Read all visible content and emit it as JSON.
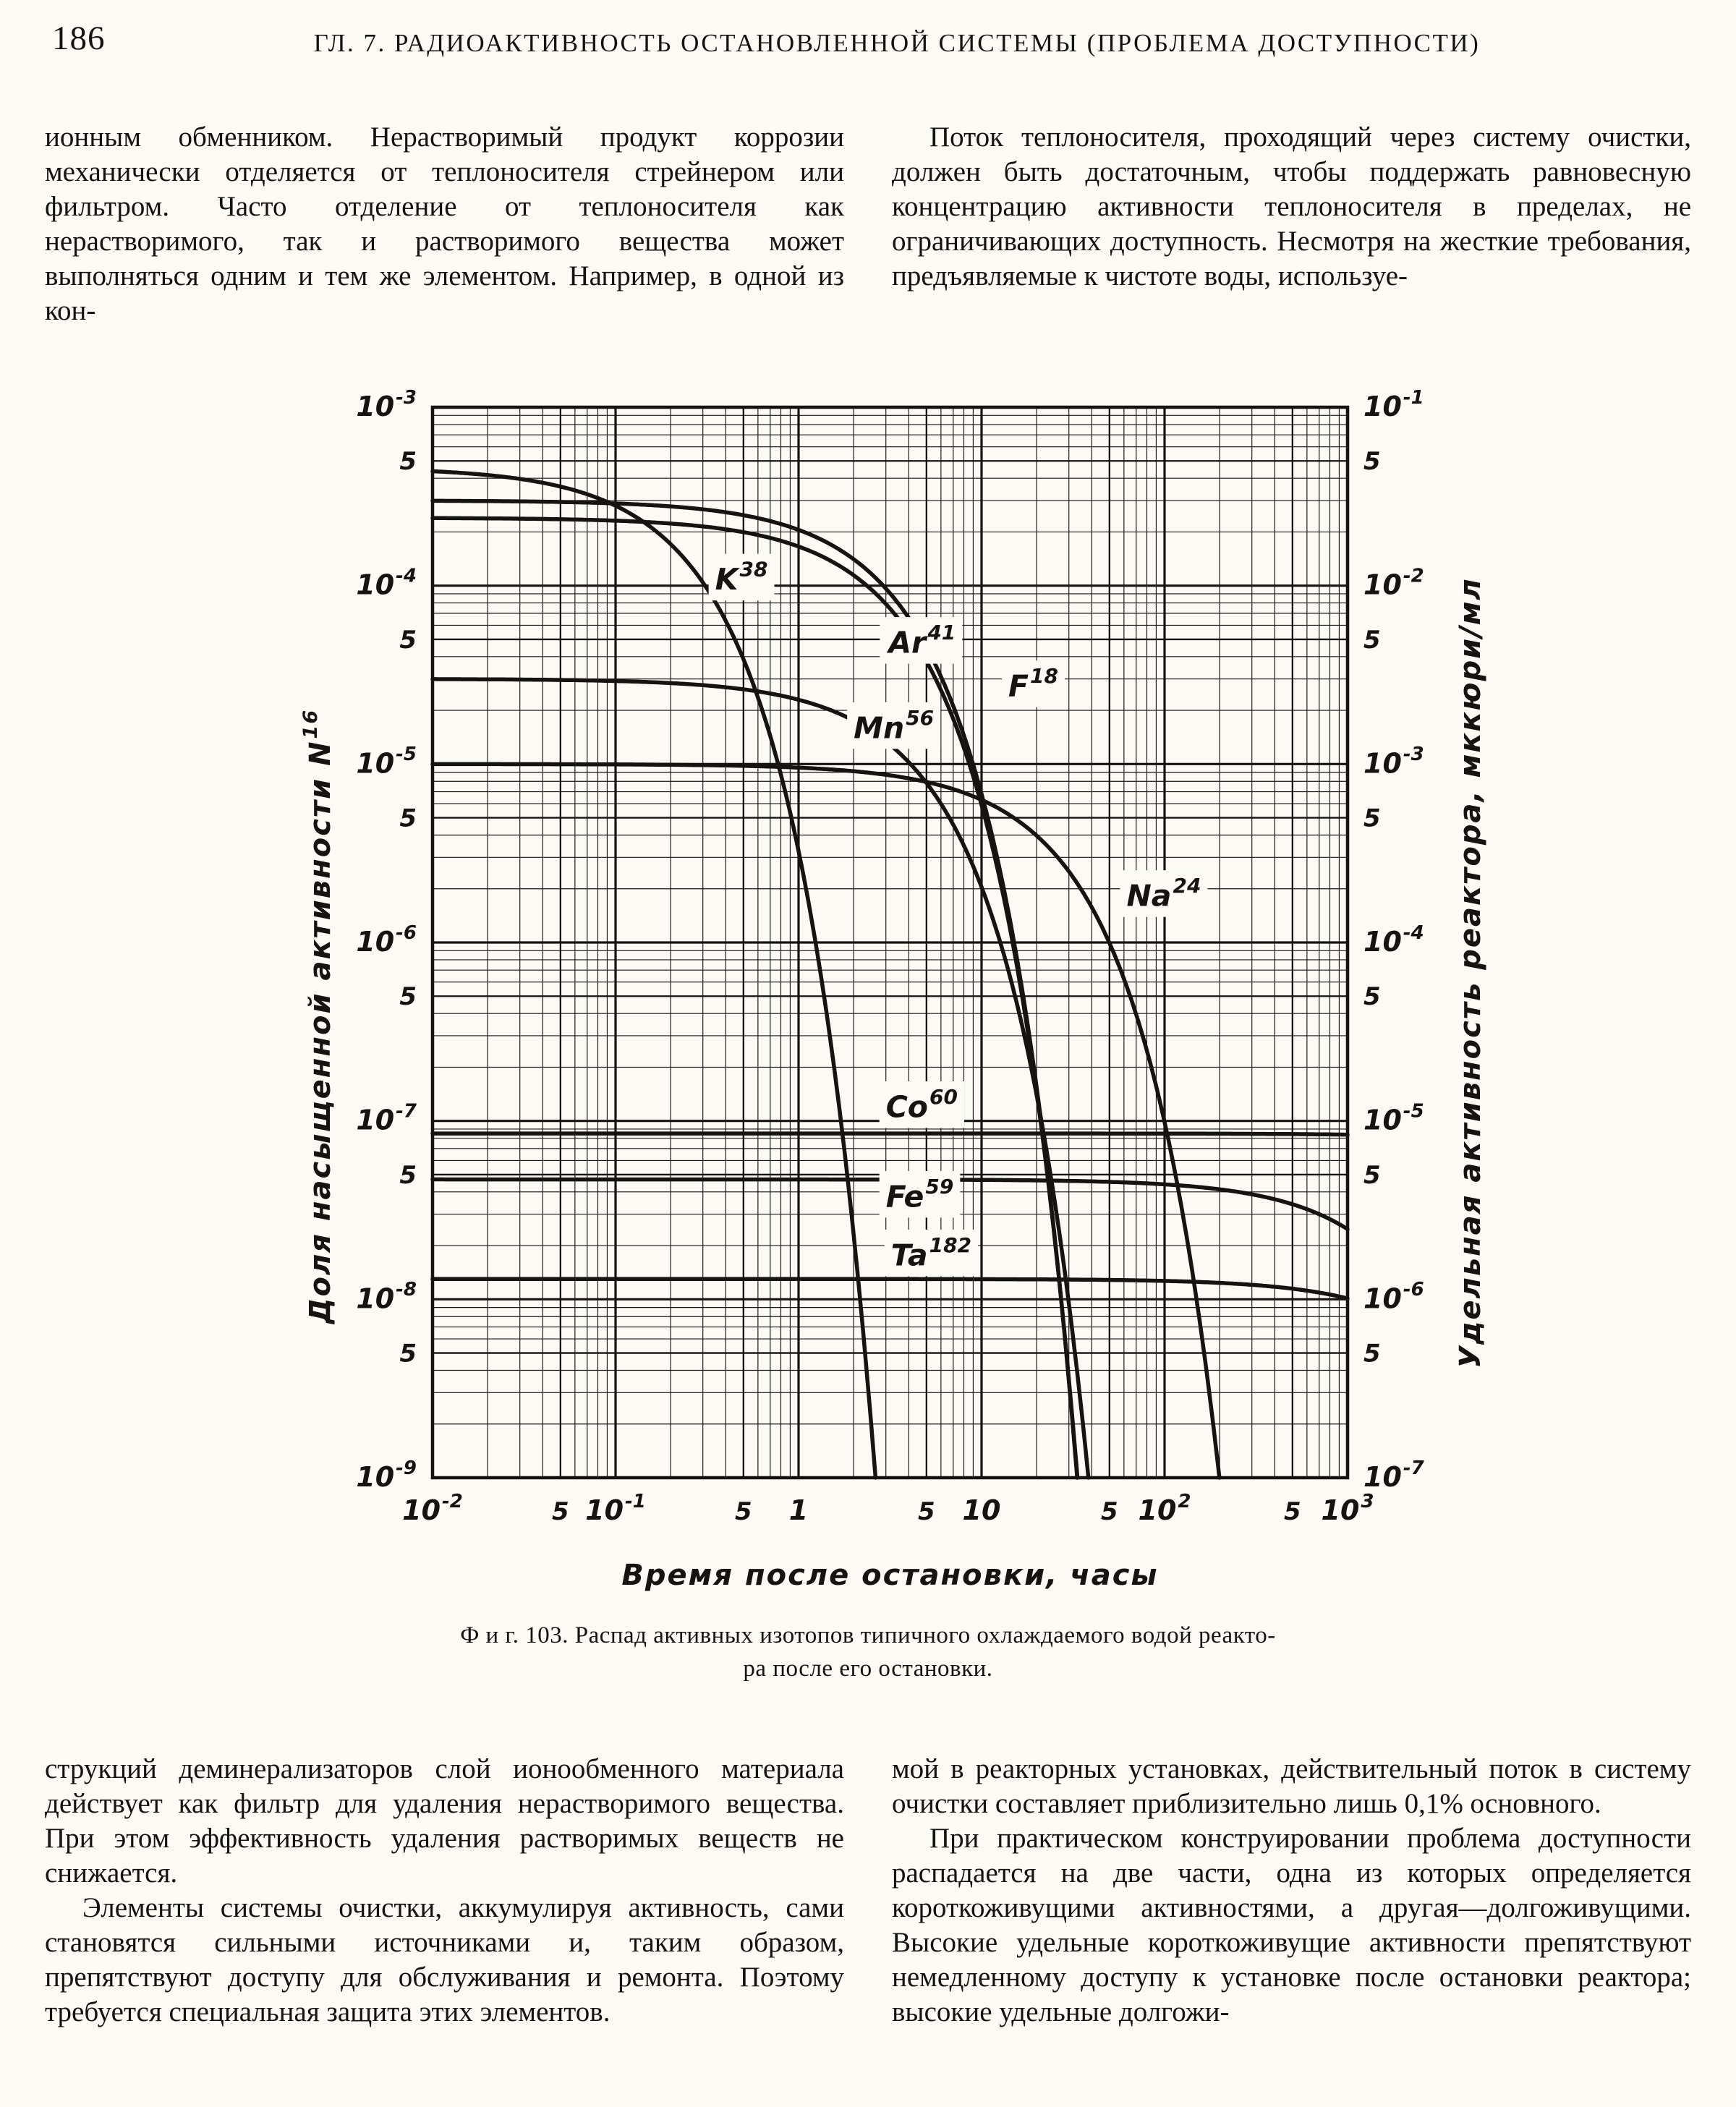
{
  "page": {
    "number": "186",
    "chapter_header": "ГЛ. 7. РАДИОАКТИВНОСТЬ ОСТАНОВЛЕННОЙ СИСТЕМЫ (ПРОБЛЕМА ДОСТУПНОСТИ)"
  },
  "text": {
    "col1_top": "ионным обменником. Нерастворимый продукт коррозии механически отделяется от теплоносителя стрейнером или фильтром. Часто отделение от теплоносителя как нерастворимого, так и растворимого вещества может выполняться одним и тем же элементом. Например, в одной из кон-",
    "col2_top": "Поток теплоносителя, проходящий через систему очистки, должен быть достаточным, чтобы поддержать равновесную концентрацию активности теплоносителя в пределах, не ограничивающих доступность. Несмотря на жесткие требования, предъявляемые к чистоте воды, используе-",
    "col1_bottom": [
      "струкций деминерализаторов слой ионообменного материала действует как фильтр для удаления нерастворимого вещества. При этом эффективность удаления растворимых веществ не снижается.",
      "Элементы системы очистки, аккумулируя активность, сами становятся сильными источниками и, таким образом, препятствуют доступу для обслуживания и ремонта. Поэтому требуется специальная защита этих элементов."
    ],
    "col2_bottom": [
      "мой в реакторных установках, действительный поток в систему очистки составляет приблизительно лишь 0,1% основного.",
      "При практическом конструировании проблема доступности распадается на две части, одна из которых определяется короткоживущими активностями, а другая—долгоживущими. Высокие удельные короткоживущие активности препятствуют немедленному доступу к установке после остановки реактора; высокие удельные долгожи-"
    ]
  },
  "caption": {
    "line1": "Ф и г. 103. Распад активных изотопов типичного охлаждаемого  водой  реакто-",
    "line2": "ра  после  его  остановки."
  },
  "chart_data": {
    "type": "line",
    "title": "Фиг. 103. Распад активных изотопов типичного охлаждаемого водой реактора после его остановки",
    "xlabel": "Время после остановки, часы",
    "ylabel_left": "Доля насыщенной активности N^16",
    "ylabel_right": "Удельная активность реактора, мккюри/мл",
    "x_scale": "log",
    "y_scale": "log",
    "xlim": [
      0.01,
      1000
    ],
    "ylim_left": [
      1e-09,
      0.001
    ],
    "ylim_right": [
      1e-07,
      0.1
    ],
    "grid": "log-log dense",
    "x_ticks": [
      {
        "t": "10^-2",
        "log": -2
      },
      {
        "t": "5",
        "log": -1.301
      },
      {
        "t": "10^-1",
        "log": -1
      },
      {
        "t": "5",
        "log": -0.301
      },
      {
        "t": "1",
        "log": 0
      },
      {
        "t": "5",
        "log": 0.699
      },
      {
        "t": "10",
        "log": 1
      },
      {
        "t": "5",
        "log": 1.699
      },
      {
        "t": "10^2",
        "log": 2
      },
      {
        "t": "5",
        "log": 2.699
      },
      {
        "t": "10^3",
        "log": 3
      }
    ],
    "y_left_ticks": [
      {
        "t": "10^-3",
        "log": -3
      },
      {
        "t": "5",
        "log": -3.301
      },
      {
        "t": "10^-4",
        "log": -4
      },
      {
        "t": "5",
        "log": -4.301
      },
      {
        "t": "10^-5",
        "log": -5
      },
      {
        "t": "5",
        "log": -5.301
      },
      {
        "t": "10^-6",
        "log": -6
      },
      {
        "t": "5",
        "log": -6.301
      },
      {
        "t": "10^-7",
        "log": -7
      },
      {
        "t": "5",
        "log": -7.301
      },
      {
        "t": "10^-8",
        "log": -8
      },
      {
        "t": "5",
        "log": -8.301
      },
      {
        "t": "10^-9",
        "log": -9
      }
    ],
    "y_right_ticks": [
      {
        "t": "10^-1",
        "log": -3
      },
      {
        "t": "5",
        "log": -3.301
      },
      {
        "t": "10^-2",
        "log": -4
      },
      {
        "t": "5",
        "log": -4.301
      },
      {
        "t": "10^-3",
        "log": -5
      },
      {
        "t": "5",
        "log": -5.301
      },
      {
        "t": "10^-4",
        "log": -6
      },
      {
        "t": "5",
        "log": -6.301
      },
      {
        "t": "10^-5",
        "log": -7
      },
      {
        "t": "5",
        "log": -7.301
      },
      {
        "t": "10^-6",
        "log": -8
      },
      {
        "t": "5",
        "log": -8.301
      },
      {
        "t": "10^-7",
        "log": -9
      }
    ],
    "series": [
      {
        "name": "K38",
        "label": "K^38",
        "f0": 0.00046,
        "half_life_h": 0.14,
        "label_at": {
          "t": 0.35,
          "f": 9.5e-05
        },
        "points": [
          [
            0.01,
            0.00044
          ],
          [
            0.1,
            0.00028
          ],
          [
            0.3,
            0.0001
          ],
          [
            0.6,
            2.4e-05
          ],
          [
            1.0,
            3.3e-06
          ],
          [
            1.5,
            2.8e-07
          ],
          [
            2.0,
            2.4e-08
          ],
          [
            2.6,
            1.2e-09
          ]
        ]
      },
      {
        "name": "Ar41",
        "label": "Ar^41",
        "f0": 0.0003,
        "half_life_h": 1.83,
        "label_at": {
          "t": 3.1,
          "f": 4.2e-05
        },
        "points": [
          [
            0.01,
            0.0003
          ],
          [
            1,
            0.000205
          ],
          [
            2,
            0.00014
          ],
          [
            4,
            6.6e-05
          ],
          [
            8,
            1.45e-05
          ],
          [
            12,
            3.2e-06
          ],
          [
            16,
            7e-07
          ],
          [
            20,
            1.6e-07
          ],
          [
            25,
            2.3e-08
          ],
          [
            30,
            3.5e-09
          ]
        ]
      },
      {
        "name": "F18",
        "label": "F^18",
        "f0": 0.00024,
        "half_life_h": 1.87,
        "label_at": {
          "t": 14,
          "f": 2.4e-05
        },
        "points": [
          [
            0.01,
            0.00024
          ],
          [
            1,
            0.000166
          ],
          [
            2,
            0.000114
          ],
          [
            4,
            5.5e-05
          ],
          [
            8,
            1.24e-05
          ],
          [
            12,
            2.8e-06
          ],
          [
            16,
            6.4e-07
          ],
          [
            20,
            1.45e-07
          ],
          [
            25,
            2.3e-08
          ],
          [
            30,
            3.6e-09
          ]
        ]
      },
      {
        "name": "Mn56",
        "label": "Mn^56",
        "f0": 3e-05,
        "half_life_h": 2.58,
        "label_at": {
          "t": 2.0,
          "f": 1.4e-05
        },
        "points": [
          [
            0.01,
            3e-05
          ],
          [
            1,
            2.3e-05
          ],
          [
            2,
            1.75e-05
          ],
          [
            4,
            1e-05
          ],
          [
            8,
            3.5e-06
          ],
          [
            12,
            1.2e-06
          ],
          [
            16,
            4.1e-07
          ],
          [
            20,
            1.4e-07
          ],
          [
            25,
            3.7e-08
          ],
          [
            30,
            9.6e-09
          ],
          [
            38,
            1.1e-09
          ]
        ]
      },
      {
        "name": "Na24",
        "label": "Na^24",
        "f0": 1e-05,
        "half_life_h": 15,
        "label_at": {
          "t": 62,
          "f": 1.6e-06
        },
        "points": [
          [
            0.01,
            1e-05
          ],
          [
            5,
            7.9e-06
          ],
          [
            10,
            6.3e-06
          ],
          [
            20,
            4e-06
          ],
          [
            40,
            1.6e-06
          ],
          [
            60,
            6.3e-07
          ],
          [
            100,
            9.9e-08
          ],
          [
            150,
            9.8e-09
          ],
          [
            197,
            1.1e-09
          ]
        ]
      },
      {
        "name": "Co60",
        "label": "Co^60",
        "f0": 8.5e-08,
        "half_life_h": 46000,
        "label_at": {
          "t": 3.0,
          "f": 1.05e-07
        },
        "points": [
          [
            0.01,
            8.5e-08
          ],
          [
            100,
            8.5e-08
          ],
          [
            1000,
            8.4e-08
          ]
        ]
      },
      {
        "name": "Fe59",
        "label": "Fe^59",
        "f0": 4.7e-08,
        "half_life_h": 1080,
        "label_at": {
          "t": 3.0,
          "f": 3.3e-08
        },
        "points": [
          [
            0.01,
            4.7e-08
          ],
          [
            100,
            4.4e-08
          ],
          [
            300,
            3.9e-08
          ],
          [
            1000,
            2.5e-08
          ]
        ]
      },
      {
        "name": "Ta182",
        "label": "Ta^182",
        "f0": 1.3e-08,
        "half_life_h": 2760,
        "label_at": {
          "t": 3.2,
          "f": 1.55e-08
        },
        "points": [
          [
            0.01,
            1.3e-08
          ],
          [
            100,
            1.27e-08
          ],
          [
            300,
            1.2e-08
          ],
          [
            1000,
            1e-08
          ]
        ]
      }
    ]
  }
}
